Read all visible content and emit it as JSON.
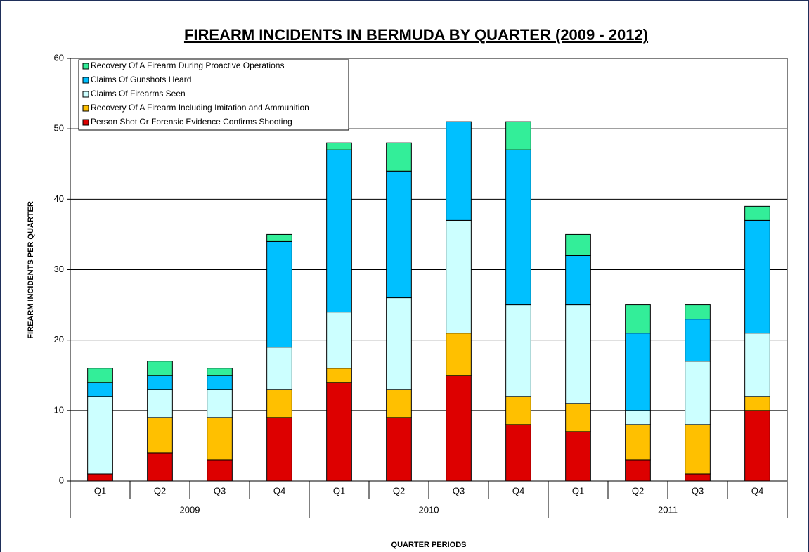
{
  "chart_data": {
    "type": "stacked_bar",
    "title": "FIREARM INCIDENTS IN BERMUDA BY QUARTER (2009 - 2012)",
    "y_label": "FIREARM INCIDENTS PER QUARTER",
    "x_label": "QUARTER PERIODS",
    "groups": [
      {
        "name": "2009",
        "categories": [
          "Q1",
          "Q2",
          "Q3",
          "Q4"
        ]
      },
      {
        "name": "2010",
        "categories": [
          "Q1",
          "Q2",
          "Q3",
          "Q4"
        ]
      },
      {
        "name": "2011",
        "categories": [
          "Q1",
          "Q2",
          "Q3",
          "Q4"
        ]
      }
    ],
    "series": [
      {
        "name": "Person Shot Or Forensic Evidence Confirms Shooting",
        "color": "#dd0000",
        "values": [
          1,
          4,
          3,
          9,
          14,
          9,
          15,
          8,
          7,
          3,
          1,
          10
        ]
      },
      {
        "name": "Recovery Of A Firearm Including Imitation and Ammunition",
        "color": "#ffc000",
        "values": [
          0,
          5,
          6,
          4,
          2,
          4,
          6,
          4,
          4,
          5,
          7,
          2
        ]
      },
      {
        "name": "Claims Of Firearms Seen",
        "color": "#ccffff",
        "values": [
          11,
          4,
          4,
          6,
          8,
          13,
          16,
          13,
          14,
          2,
          9,
          9
        ]
      },
      {
        "name": "Claims Of Gunshots Heard",
        "color": "#00c0ff",
        "values": [
          2,
          2,
          2,
          15,
          23,
          18,
          14,
          22,
          7,
          11,
          6,
          16
        ]
      },
      {
        "name": "Recovery Of A Firearm During Proactive Operations",
        "color": "#33ee99",
        "values": [
          2,
          2,
          1,
          1,
          1,
          4,
          0,
          4,
          3,
          4,
          2,
          2
        ]
      }
    ],
    "ylim": [
      0,
      60
    ],
    "yticks": [
      0,
      10,
      20,
      30,
      40,
      50,
      60
    ],
    "grid": true,
    "legend": "upper-left"
  }
}
